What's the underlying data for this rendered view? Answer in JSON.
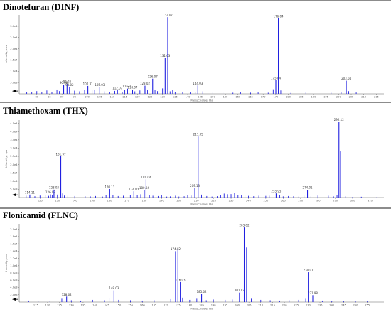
{
  "chart_data": [
    {
      "type": "bar",
      "title": "Dinotefuran (DINF)",
      "xlabel": "Mass/Charge, Da",
      "ylabel": "Intensity, cps",
      "xlim": [
        73,
        218
      ],
      "ylim": [
        0,
        35000
      ],
      "x_ticks": [
        80,
        85,
        90,
        95,
        100,
        105,
        110,
        115,
        120,
        125,
        130,
        135,
        140,
        145,
        150,
        155,
        160,
        165,
        170,
        175,
        180,
        185,
        190,
        195,
        200,
        205,
        210,
        215
      ],
      "y_ticks": [
        {
          "v": 5000,
          "label": "5.0e3"
        },
        {
          "v": 10000,
          "label": "1.0e4"
        },
        {
          "v": 15000,
          "label": "1.5e4"
        },
        {
          "v": 20000,
          "label": "2.0e4"
        },
        {
          "v": 25000,
          "label": "2.5e4"
        },
        {
          "v": 30000,
          "label": "3.0e4"
        }
      ],
      "labeled_peaks": [
        {
          "x": 90.68,
          "y": 4000,
          "label": "90.68"
        },
        {
          "x": 92.02,
          "y": 4400,
          "label": "92.02"
        },
        {
          "x": 93.02,
          "y": 3000,
          "label": "93.02"
        },
        {
          "x": 100.31,
          "y": 3500,
          "label": "100.31"
        },
        {
          "x": 105.03,
          "y": 3000,
          "label": "105.03"
        },
        {
          "x": 112.07,
          "y": 1600,
          "label": "112.07"
        },
        {
          "x": 116.07,
          "y": 2300,
          "label": "116.07"
        },
        {
          "x": 118.07,
          "y": 1900,
          "label": "118.07"
        },
        {
          "x": 123.02,
          "y": 3600,
          "label": "123.02"
        },
        {
          "x": 126.07,
          "y": 6700,
          "label": "126.07"
        },
        {
          "x": 131.03,
          "y": 16000,
          "label": "131.03"
        },
        {
          "x": 132.07,
          "y": 34000,
          "label": "132.07"
        },
        {
          "x": 144.03,
          "y": 3700,
          "label": "144.03"
        },
        {
          "x": 175.04,
          "y": 6000,
          "label": "175.04"
        },
        {
          "x": 176.04,
          "y": 33500,
          "label": "176.04"
        },
        {
          "x": 203.04,
          "y": 5800,
          "label": "203.04"
        }
      ],
      "peaks": [
        [
          76,
          800
        ],
        [
          78,
          900
        ],
        [
          80,
          1200
        ],
        [
          82,
          700
        ],
        [
          84,
          1500
        ],
        [
          86,
          900
        ],
        [
          88,
          1900
        ],
        [
          89,
          1200
        ],
        [
          95,
          1400
        ],
        [
          97,
          1100
        ],
        [
          99,
          1800
        ],
        [
          102,
          1500
        ],
        [
          103,
          1900
        ],
        [
          107,
          1100
        ],
        [
          109,
          900
        ],
        [
          111,
          1300
        ],
        [
          114,
          900
        ],
        [
          115,
          1600
        ],
        [
          119,
          1100
        ],
        [
          121,
          1500
        ],
        [
          124,
          1900
        ],
        [
          127,
          1600
        ],
        [
          128,
          1200
        ],
        [
          130,
          2400
        ],
        [
          133,
          1100
        ],
        [
          134,
          1800
        ],
        [
          135,
          900
        ],
        [
          138,
          700
        ],
        [
          141,
          600
        ],
        [
          143,
          900
        ],
        [
          146,
          1100
        ],
        [
          150,
          600
        ],
        [
          154,
          600
        ],
        [
          158,
          500
        ],
        [
          161,
          700
        ],
        [
          165,
          500
        ],
        [
          168,
          600
        ],
        [
          172,
          500
        ],
        [
          174,
          2000
        ],
        [
          177,
          1500
        ],
        [
          181,
          400
        ],
        [
          187,
          600
        ],
        [
          191,
          700
        ],
        [
          197,
          500
        ],
        [
          201,
          800
        ],
        [
          204,
          1200
        ],
        [
          207,
          600
        ]
      ]
    },
    {
      "type": "bar",
      "title": "Thiamethoxam (THX)",
      "xlabel": "Mass/Charge, Da",
      "ylabel": "Intensity, cps",
      "xlim": [
        108,
        318
      ],
      "ylim": [
        0,
        47000
      ],
      "x_ticks": [
        120,
        130,
        140,
        150,
        160,
        170,
        180,
        190,
        200,
        210,
        220,
        230,
        240,
        250,
        260,
        270,
        280,
        290,
        300,
        310
      ],
      "y_ticks": [
        {
          "v": 5000,
          "label": "5.0e3"
        },
        {
          "v": 10000,
          "label": "1.0e4"
        },
        {
          "v": 15000,
          "label": "1.5e4"
        },
        {
          "v": 20000,
          "label": "2.0e4"
        },
        {
          "v": 25000,
          "label": "2.5e4"
        },
        {
          "v": 30000,
          "label": "3.0e4"
        },
        {
          "v": 35000,
          "label": "3.5e4"
        },
        {
          "v": 40000,
          "label": "4.0e4"
        },
        {
          "v": 45000,
          "label": "4.5e4"
        }
      ],
      "labeled_peaks": [
        {
          "x": 114.11,
          "y": 1800,
          "label": "114.11"
        },
        {
          "x": 126.02,
          "y": 1900,
          "label": "126.02"
        },
        {
          "x": 128.03,
          "y": 4800,
          "label": "128.03"
        },
        {
          "x": 131.97,
          "y": 25000,
          "label": "131.97"
        },
        {
          "x": 160.13,
          "y": 5200,
          "label": "160.13"
        },
        {
          "x": 174.03,
          "y": 3800,
          "label": "174.03"
        },
        {
          "x": 180.04,
          "y": 4500,
          "label": "180.04"
        },
        {
          "x": 181.04,
          "y": 11000,
          "label": "181.04"
        },
        {
          "x": 209.13,
          "y": 5800,
          "label": "209.13"
        },
        {
          "x": 211.05,
          "y": 37000,
          "label": "211.05"
        },
        {
          "x": 255.95,
          "y": 2500,
          "label": "255.95"
        },
        {
          "x": 274.01,
          "y": 4700,
          "label": "274.01"
        },
        {
          "x": 292.12,
          "y": 46000,
          "label": "292.12"
        }
      ],
      "peaks": [
        [
          112,
          1100
        ],
        [
          117,
          800
        ],
        [
          120,
          1200
        ],
        [
          123,
          1300
        ],
        [
          125,
          1000
        ],
        [
          127,
          1600
        ],
        [
          130,
          1800
        ],
        [
          133,
          2500
        ],
        [
          134,
          1200
        ],
        [
          136,
          1100
        ],
        [
          140,
          900
        ],
        [
          143,
          1100
        ],
        [
          146,
          800
        ],
        [
          149,
          700
        ],
        [
          152,
          900
        ],
        [
          156,
          600
        ],
        [
          158,
          1300
        ],
        [
          162,
          1600
        ],
        [
          165,
          900
        ],
        [
          168,
          1100
        ],
        [
          170,
          1300
        ],
        [
          172,
          1600
        ],
        [
          176,
          1300
        ],
        [
          178,
          2000
        ],
        [
          183,
          1600
        ],
        [
          185,
          1100
        ],
        [
          188,
          900
        ],
        [
          190,
          1500
        ],
        [
          193,
          600
        ],
        [
          195,
          700
        ],
        [
          198,
          1100
        ],
        [
          200,
          600
        ],
        [
          203,
          800
        ],
        [
          205,
          1500
        ],
        [
          207,
          1200
        ],
        [
          213,
          1800
        ],
        [
          216,
          900
        ],
        [
          219,
          600
        ],
        [
          222,
          800
        ],
        [
          224,
          1600
        ],
        [
          226,
          2400
        ],
        [
          228,
          2000
        ],
        [
          230,
          2100
        ],
        [
          232,
          2700
        ],
        [
          234,
          1700
        ],
        [
          236,
          1400
        ],
        [
          238,
          1300
        ],
        [
          240,
          1000
        ],
        [
          243,
          800
        ],
        [
          246,
          1100
        ],
        [
          250,
          1000
        ],
        [
          252,
          1100
        ],
        [
          258,
          1300
        ],
        [
          260,
          700
        ],
        [
          263,
          900
        ],
        [
          266,
          800
        ],
        [
          269,
          600
        ],
        [
          272,
          1100
        ],
        [
          276,
          800
        ],
        [
          280,
          1200
        ],
        [
          283,
          900
        ],
        [
          286,
          1100
        ],
        [
          289,
          700
        ],
        [
          291,
          1400
        ],
        [
          293,
          28000
        ],
        [
          296,
          800
        ],
        [
          300,
          400
        ],
        [
          305,
          500
        ],
        [
          310,
          400
        ],
        [
          314,
          300
        ]
      ]
    },
    {
      "type": "bar",
      "title": "Flonicamid (FLNC)",
      "xlabel": "Mass/Charge, Da",
      "ylabel": "Intensity, cps",
      "xlim": [
        108,
        262
      ],
      "ylim": [
        0,
        21500
      ],
      "x_ticks": [
        115,
        120,
        125,
        130,
        135,
        140,
        145,
        150,
        155,
        160,
        165,
        170,
        175,
        180,
        185,
        190,
        195,
        200,
        205,
        210,
        215,
        220,
        225,
        230,
        235,
        240,
        245,
        250,
        255
      ],
      "y_ticks": [
        {
          "v": 2000,
          "label": "2.0e3"
        },
        {
          "v": 4000,
          "label": "4.0e3"
        },
        {
          "v": 6000,
          "label": "6.0e3"
        },
        {
          "v": 8000,
          "label": "8.0e3"
        },
        {
          "v": 10000,
          "label": "1.0e4"
        },
        {
          "v": 12000,
          "label": "1.2e4"
        },
        {
          "v": 14000,
          "label": "1.4e4"
        },
        {
          "v": 16000,
          "label": "1.6e4"
        },
        {
          "v": 18000,
          "label": "1.8e4"
        },
        {
          "v": 20000,
          "label": "2.0e4"
        }
      ],
      "labeled_peaks": [
        {
          "x": 128.02,
          "y": 1500,
          "label": "128.02"
        },
        {
          "x": 148.03,
          "y": 3200,
          "label": "148.03"
        },
        {
          "x": 174.02,
          "y": 14000,
          "label": "174.02"
        },
        {
          "x": 176.03,
          "y": 5500,
          "label": "176.03"
        },
        {
          "x": 185.02,
          "y": 2200,
          "label": "185.02"
        },
        {
          "x": 201.02,
          "y": 2600,
          "label": "201.02"
        },
        {
          "x": 203.02,
          "y": 20500,
          "label": "203.02"
        },
        {
          "x": 230.07,
          "y": 8200,
          "label": "230.07"
        },
        {
          "x": 231.98,
          "y": 1900,
          "label": "231.98"
        }
      ],
      "peaks": [
        [
          112,
          400
        ],
        [
          116,
          300
        ],
        [
          121,
          400
        ],
        [
          126,
          900
        ],
        [
          130,
          500
        ],
        [
          134,
          400
        ],
        [
          139,
          600
        ],
        [
          144,
          500
        ],
        [
          146,
          1100
        ],
        [
          150,
          600
        ],
        [
          155,
          500
        ],
        [
          160,
          400
        ],
        [
          165,
          500
        ],
        [
          170,
          600
        ],
        [
          172,
          800
        ],
        [
          175,
          14500
        ],
        [
          177,
          1200
        ],
        [
          180,
          600
        ],
        [
          183,
          900
        ],
        [
          187,
          500
        ],
        [
          190,
          700
        ],
        [
          195,
          600
        ],
        [
          198,
          700
        ],
        [
          200,
          1500
        ],
        [
          204,
          15000
        ],
        [
          206,
          900
        ],
        [
          210,
          600
        ],
        [
          214,
          500
        ],
        [
          218,
          400
        ],
        [
          222,
          500
        ],
        [
          226,
          600
        ],
        [
          229,
          900
        ],
        [
          232,
          700
        ],
        [
          236,
          400
        ],
        [
          240,
          300
        ],
        [
          245,
          300
        ],
        [
          250,
          200
        ],
        [
          255,
          200
        ]
      ]
    }
  ]
}
